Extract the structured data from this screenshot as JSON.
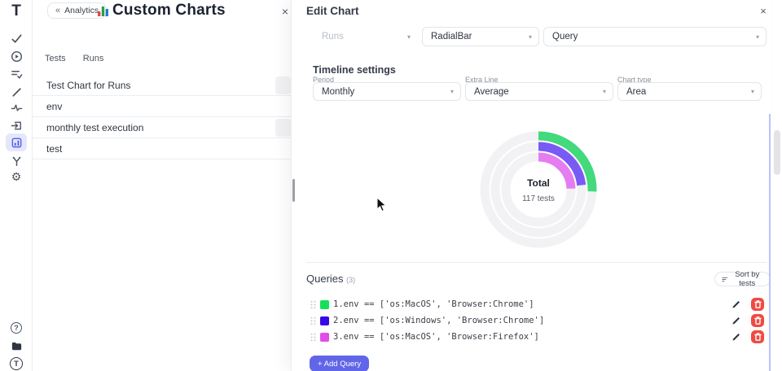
{
  "app": {
    "logo": "T"
  },
  "sidebar": {
    "icons": [
      "check",
      "play-circle",
      "task-list",
      "debug",
      "pulse",
      "import",
      "analytics-charts",
      "branch",
      "settings"
    ],
    "bottom_icons": [
      "help",
      "docs",
      "profile"
    ],
    "help_glyph": "?",
    "profile_glyph": "T"
  },
  "main": {
    "back_chevron": "«",
    "back_label": "Analytics",
    "title": "Custom Charts",
    "close_glyph": "×",
    "tabs": [
      {
        "label": "Tests"
      },
      {
        "label": "Runs"
      }
    ],
    "items": [
      {
        "label": "Test Chart for Runs"
      },
      {
        "label": "env"
      },
      {
        "label": "monthly test execution"
      },
      {
        "label": "test"
      }
    ]
  },
  "drawer": {
    "title": "Edit Chart",
    "close_glyph": "×",
    "chevron": "▾",
    "source_select": {
      "value": "Runs",
      "disabled": true
    },
    "type_select": {
      "value": "RadialBar"
    },
    "mode_select": {
      "value": "Query"
    },
    "timeline": {
      "heading": "Timeline settings",
      "fields": [
        {
          "label": "Period",
          "value": "Monthly"
        },
        {
          "label": "Extra Line",
          "value": "Average"
        },
        {
          "label": "Chart type",
          "value": "Area"
        }
      ]
    },
    "queries": {
      "heading": "Queries",
      "count": "(3)",
      "sort_label": "Sort by tests",
      "add_label": "+ Add Query",
      "items": [
        {
          "num": "1.",
          "color": "#16e05a",
          "text": "env == ['os:MacOS', 'Browser:Chrome']"
        },
        {
          "num": "2.",
          "color": "#3708e8",
          "text": "env == ['os:Windows', 'Browser:Chrome']"
        },
        {
          "num": "3.",
          "color": "#e14ee6",
          "text": "env == ['os:MacOS', 'Browser:Firefox']"
        }
      ]
    }
  },
  "chart_data": {
    "type": "radialbar",
    "title": "Total",
    "center_title": "Total",
    "center_subtitle": "117 tests",
    "total_tests": 117,
    "start_angle_deg": 0,
    "track_color": "#f2f2f5",
    "radii": [
      66,
      53,
      40
    ],
    "stroke_width": 11,
    "series": [
      {
        "name": "env == ['os:MacOS', 'Browser:Chrome']",
        "color": "#43d97d",
        "arc_degrees": 92
      },
      {
        "name": "env == ['os:Windows', 'Browser:Chrome']",
        "color": "#7a5af5",
        "arc_degrees": 84
      },
      {
        "name": "env == ['os:MacOS', 'Browser:Firefox']",
        "color": "#e57cf0",
        "arc_degrees": 88
      }
    ],
    "legend_position": "bottom-list",
    "grid": false
  }
}
